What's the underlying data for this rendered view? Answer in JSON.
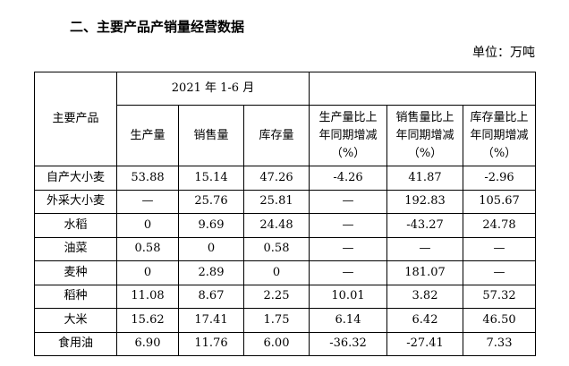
{
  "header": {
    "title": "二、主要产品产销量经营数据",
    "unit": "单位：万吨"
  },
  "table": {
    "product_header": "主要产品",
    "period": "2021 年 1-6 月",
    "columns": [
      [
        "生产量"
      ],
      [
        "销售量"
      ],
      [
        "库存量"
      ],
      [
        "生产量比上",
        "年同期增减",
        "（%）"
      ],
      [
        "销售量比上",
        "年同期增减",
        "（%）"
      ],
      [
        "库存量比上",
        "年同期增减",
        "（%）"
      ]
    ],
    "rows": [
      [
        "自产大小麦",
        "53.88",
        "15.14",
        "47.26",
        "-4.26",
        "41.87",
        "-2.96"
      ],
      [
        "外采大小麦",
        "—",
        "25.76",
        "25.81",
        "—",
        "192.83",
        "105.67"
      ],
      [
        "水稻",
        "0",
        "9.69",
        "24.48",
        "—",
        "-43.27",
        "24.78"
      ],
      [
        "油菜",
        "0.58",
        "0",
        "0.58",
        "—",
        "—",
        "—"
      ],
      [
        "麦种",
        "0",
        "2.89",
        "0",
        "—",
        "181.07",
        "—"
      ],
      [
        "稻种",
        "11.08",
        "8.67",
        "2.25",
        "10.01",
        "3.82",
        "57.32"
      ],
      [
        "大米",
        "15.62",
        "17.41",
        "1.75",
        "6.14",
        "6.42",
        "46.50"
      ],
      [
        "食用油",
        "6.90",
        "11.76",
        "6.00",
        "-36.32",
        "-27.41",
        "7.33"
      ]
    ]
  }
}
